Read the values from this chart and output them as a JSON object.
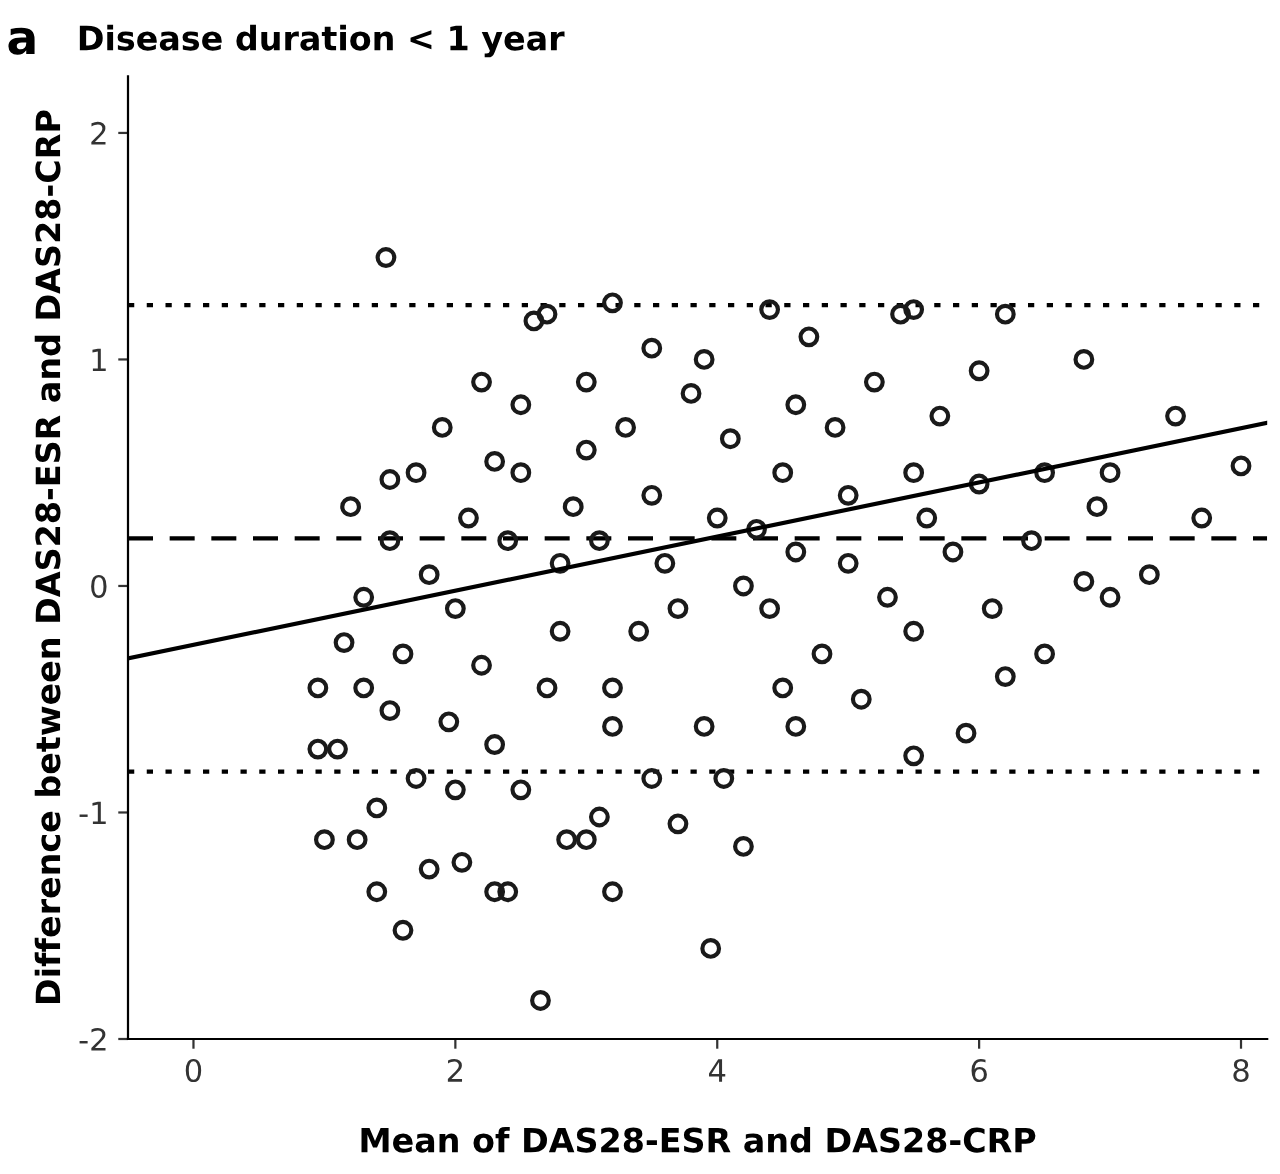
{
  "chart_data": {
    "type": "scatter",
    "title": "Disease duration < 1 year",
    "xlabel": "Mean of DAS28-ESR and DAS28-CRP",
    "ylabel": "Difference between DAS28-ESR and DAS28-CRP",
    "annotations": [
      "a"
    ],
    "xlim": [
      -0.5,
      8.2
    ],
    "ylim": [
      -2,
      2.25
    ],
    "xticks": [
      0,
      2,
      4,
      6,
      8
    ],
    "yticks": [
      -2,
      -1,
      0,
      1,
      2
    ],
    "grid": false,
    "series": [
      {
        "color": "#1a1a1a",
        "marker": "circle",
        "x": [
          2.65,
          3.95,
          3.2,
          2.4,
          2.3,
          1.6,
          1.4,
          2.05,
          1.8,
          2.85,
          3.0,
          3.1,
          3.7,
          4.2,
          1.25,
          1.0,
          1.1,
          0.95,
          1.4,
          1.7,
          2.0,
          2.5,
          3.5,
          4.05,
          5.5,
          5.9,
          4.6,
          3.9,
          3.2,
          2.3,
          1.95,
          1.5,
          1.3,
          0.95,
          1.15,
          1.6,
          2.2,
          2.7,
          3.2,
          4.5,
          5.1,
          6.5,
          6.2,
          7.3,
          7.0,
          6.8,
          5.5,
          4.8,
          3.4,
          2.8,
          2.0,
          1.3,
          1.8,
          1.5,
          1.2,
          1.5,
          1.9,
          2.2,
          2.6,
          2.7,
          3.2,
          3.5,
          4.4,
          5.4,
          5.5,
          6.2,
          1.47,
          2.5,
          3.0,
          3.5,
          4.0,
          4.3,
          4.5,
          5.0,
          5.5,
          6.0,
          6.5,
          7.0,
          7.5,
          7.7,
          8.0,
          6.8,
          6.0,
          5.2,
          4.6,
          3.8,
          3.0,
          2.5,
          2.8,
          3.6,
          4.2,
          5.0,
          5.8,
          6.4,
          3.3,
          4.1,
          4.9,
          5.7,
          2.1,
          2.4,
          3.7,
          4.4,
          5.3,
          6.1,
          3.9,
          4.7,
          2.9,
          4.6,
          5.6,
          6.9,
          1.7,
          2.3,
          3.1
        ],
        "values": [
          -1.83,
          -1.6,
          -1.35,
          -1.35,
          -1.35,
          -1.52,
          -1.35,
          -1.22,
          -1.25,
          -1.12,
          -1.12,
          -1.02,
          -1.05,
          -1.15,
          -1.12,
          -1.12,
          -0.72,
          -0.72,
          -0.98,
          -0.85,
          -0.9,
          -0.9,
          -0.85,
          -0.85,
          -0.75,
          -0.65,
          -0.62,
          -0.62,
          -0.62,
          -0.7,
          -0.6,
          -0.55,
          -0.45,
          -0.45,
          -0.25,
          -0.3,
          -0.35,
          -0.45,
          -0.45,
          -0.45,
          -0.5,
          -0.3,
          -0.4,
          0.05,
          -0.05,
          0.02,
          -0.2,
          -0.3,
          -0.2,
          -0.2,
          -0.1,
          -0.05,
          0.05,
          0.2,
          0.35,
          0.47,
          0.7,
          0.9,
          1.17,
          1.2,
          1.25,
          1.05,
          1.22,
          1.2,
          1.22,
          1.2,
          1.45,
          0.5,
          0.6,
          0.4,
          0.3,
          0.25,
          0.5,
          0.4,
          0.5,
          0.45,
          0.5,
          0.5,
          0.75,
          0.3,
          0.53,
          1.0,
          0.95,
          0.9,
          0.8,
          0.85,
          0.9,
          0.8,
          0.1,
          0.1,
          0.0,
          0.1,
          0.15,
          0.2,
          0.7,
          0.65,
          0.7,
          0.75,
          0.3,
          0.2,
          -0.1,
          -0.1,
          -0.05,
          -0.1,
          1.0,
          1.1,
          0.35,
          0.15,
          0.3,
          0.35,
          0.5,
          0.55,
          0.2
        ]
      },
      {
        "type": "line",
        "color": "#000000",
        "line_style": "solid",
        "x": [
          -0.5,
          8.2
        ],
        "values": [
          -0.32,
          0.72
        ]
      }
    ],
    "ref_lines": [
      {
        "axis": "y",
        "value": 1.24,
        "line_style": "dotted",
        "color": "#000000"
      },
      {
        "axis": "y",
        "value": 0.21,
        "line_style": "dashed",
        "color": "#000000"
      },
      {
        "axis": "y",
        "value": -0.82,
        "line_style": "dotted",
        "color": "#000000"
      }
    ]
  }
}
